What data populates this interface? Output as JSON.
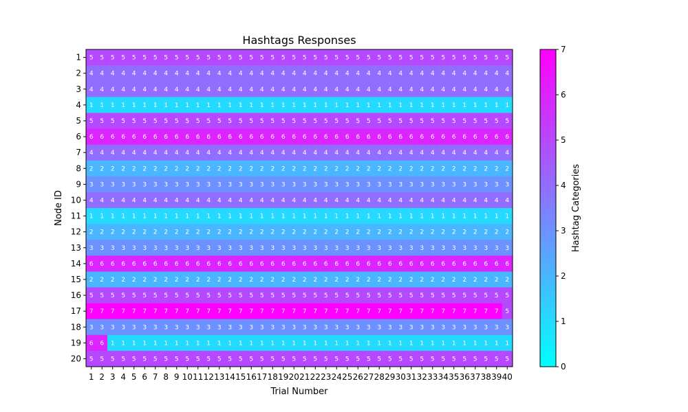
{
  "chart_data": {
    "type": "heatmap",
    "title": "Hashtags Responses",
    "xlabel": "Trial Number",
    "ylabel": "Node ID",
    "x_categories": [
      "1",
      "2",
      "3",
      "4",
      "5",
      "6",
      "7",
      "8",
      "9",
      "10",
      "11",
      "12",
      "13",
      "14",
      "15",
      "16",
      "17",
      "18",
      "19",
      "20",
      "21",
      "22",
      "23",
      "24",
      "25",
      "26",
      "27",
      "28",
      "29",
      "30",
      "31",
      "32",
      "33",
      "34",
      "35",
      "36",
      "37",
      "38",
      "39",
      "40"
    ],
    "y_categories": [
      "1",
      "2",
      "3",
      "4",
      "5",
      "6",
      "7",
      "8",
      "9",
      "10",
      "11",
      "12",
      "13",
      "14",
      "15",
      "16",
      "17",
      "18",
      "19",
      "20"
    ],
    "row_base_values": [
      5,
      4,
      4,
      1,
      5,
      6,
      4,
      2,
      3,
      4,
      1,
      2,
      3,
      6,
      2,
      5,
      7,
      3,
      1,
      5
    ],
    "overrides": [
      {
        "node": "17",
        "trials": [
          "40"
        ],
        "value": 5
      },
      {
        "node": "19",
        "trials": [
          "1",
          "2"
        ],
        "value": 6
      }
    ],
    "colorbar": {
      "label": "Hashtag Categories",
      "cmap": "cool",
      "min": 0,
      "max": 7,
      "ticks": [
        "0",
        "1",
        "2",
        "3",
        "4",
        "5",
        "6",
        "7"
      ]
    },
    "colors": {
      "cmap_low": "#00ffff",
      "cmap_high": "#ff00ff",
      "cell_text": "#ffffff"
    },
    "grid": false,
    "cell_annotations": true
  }
}
